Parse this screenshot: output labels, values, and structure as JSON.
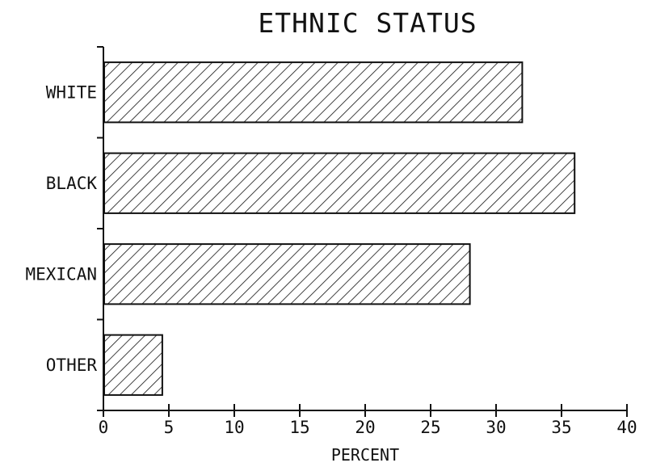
{
  "chart_data": {
    "type": "bar",
    "orientation": "horizontal",
    "title": "ETHNIC STATUS",
    "xlabel": "PERCENT",
    "ylabel": "",
    "categories": [
      "WHITE",
      "BLACK",
      "MEXICAN",
      "OTHER"
    ],
    "values": [
      32,
      36,
      28,
      4.5
    ],
    "xlim": [
      0,
      40
    ],
    "xticks": [
      "0",
      "5",
      "10",
      "15",
      "20",
      "25",
      "30",
      "35",
      "40"
    ],
    "grid": false,
    "bar_fill": "diagonal hatch",
    "colors": {
      "ink": "#111111",
      "background": "#ffffff"
    }
  }
}
